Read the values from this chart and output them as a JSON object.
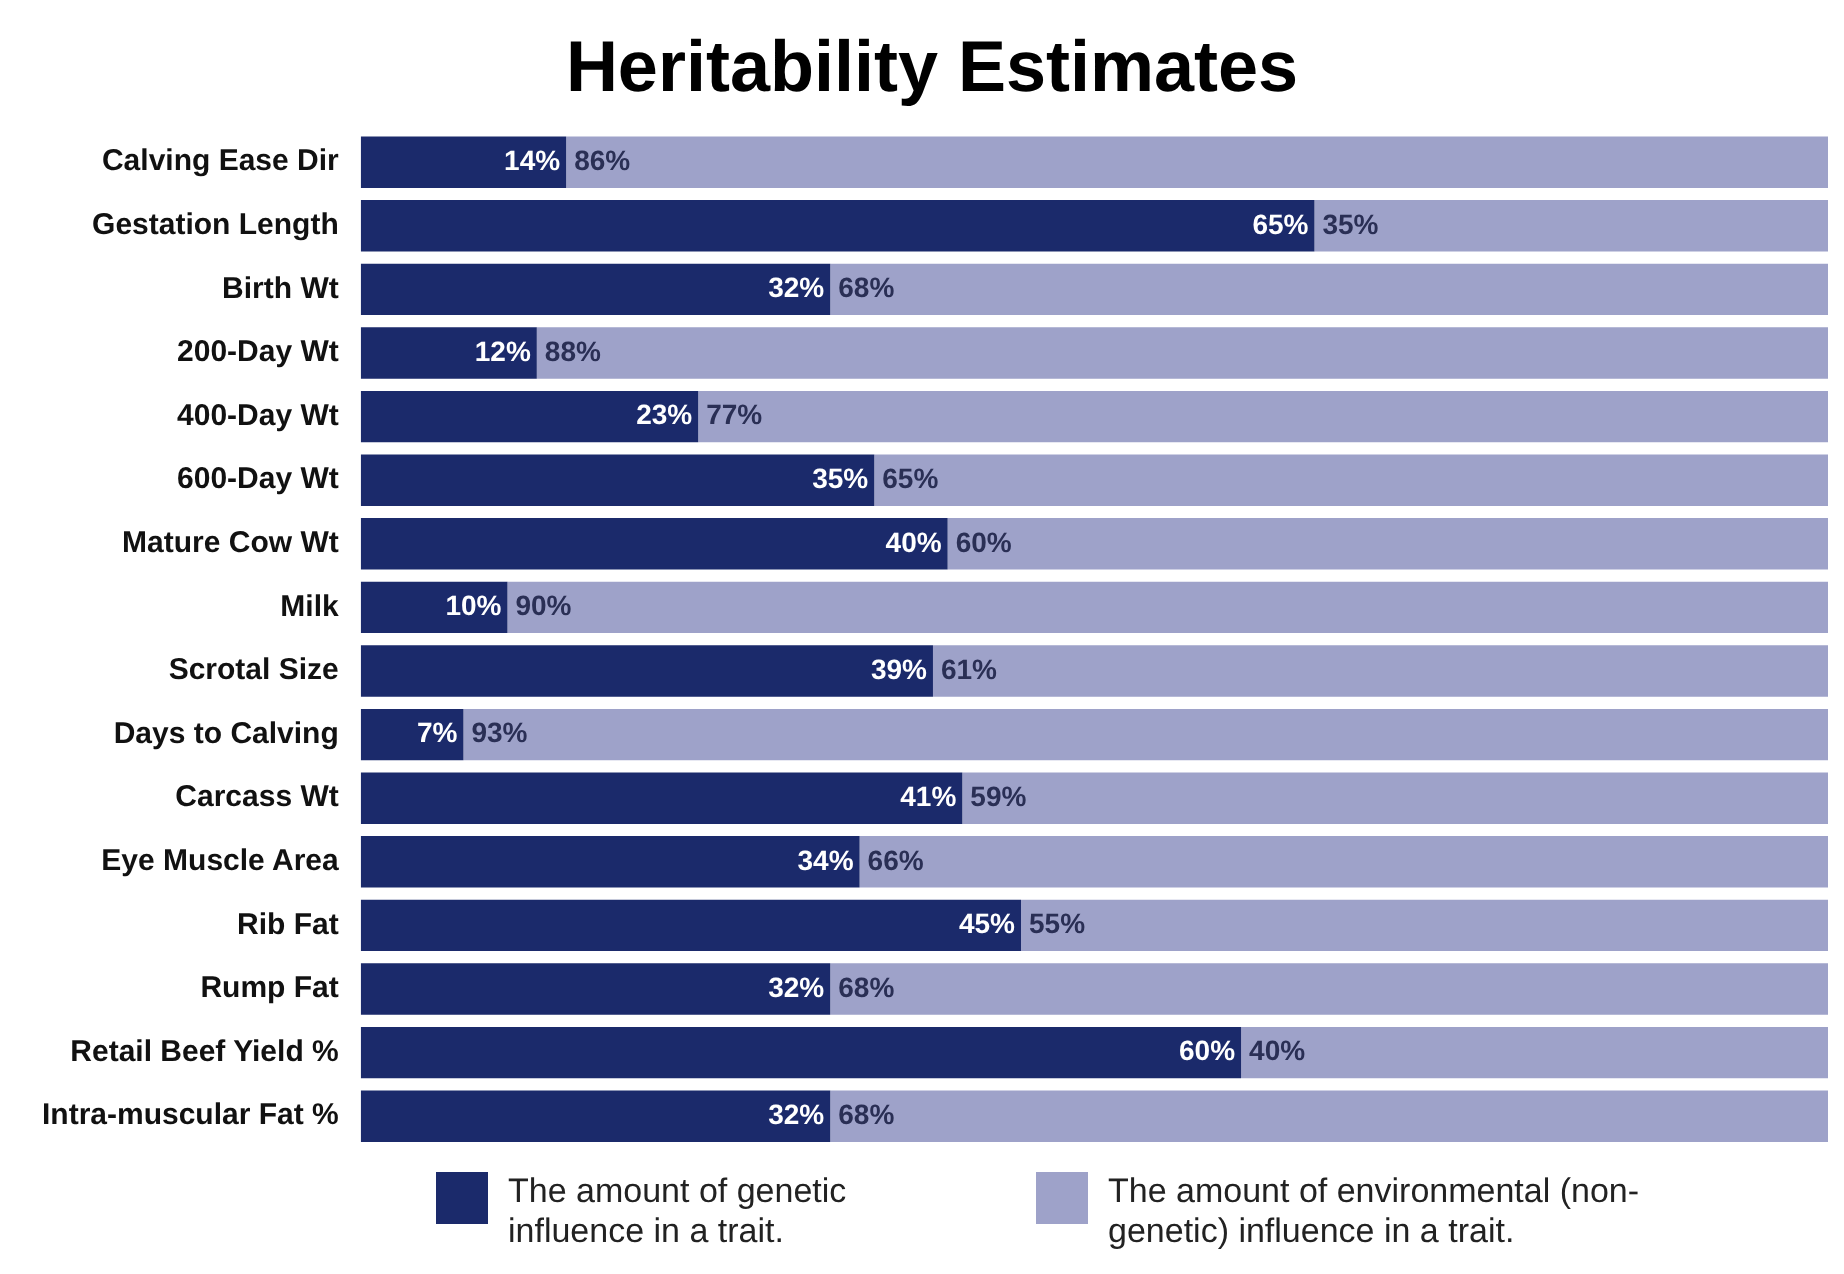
{
  "chart_data": {
    "type": "bar",
    "orientation": "horizontal",
    "stacked": true,
    "title": "Heritability Estimates",
    "categories": [
      "Calving Ease Dir",
      "Gestation Length",
      "Birth Wt",
      "200-Day Wt",
      "400-Day Wt",
      "600-Day Wt",
      "Mature Cow Wt",
      "Milk",
      "Scrotal Size",
      "Days to Calving",
      "Carcass Wt",
      "Eye Muscle Area",
      "Rib Fat",
      "Rump Fat",
      "Retail Beef Yield %",
      "Intra-muscular Fat %"
    ],
    "series": [
      {
        "name": "The amount of genetic influence in a trait.",
        "color": "#1b2a6b",
        "values": [
          14,
          65,
          32,
          12,
          23,
          35,
          40,
          10,
          39,
          7,
          41,
          34,
          45,
          32,
          60,
          32
        ],
        "value_labels": [
          "14%",
          "65%",
          "32%",
          "12%",
          "23%",
          "35%",
          "40%",
          "10%",
          "39%",
          "7%",
          "41%",
          "34%",
          "45%",
          "32%",
          "60%",
          "32%"
        ]
      },
      {
        "name": "The amount of environmental (non-genetic) influence in a trait.",
        "color": "#9ea2c9",
        "values": [
          86,
          35,
          68,
          88,
          77,
          65,
          60,
          90,
          61,
          93,
          59,
          66,
          55,
          68,
          40,
          68
        ],
        "value_labels": [
          "86%",
          "35%",
          "68%",
          "88%",
          "77%",
          "65%",
          "60%",
          "90%",
          "61%",
          "93%",
          "59%",
          "66%",
          "55%",
          "68%",
          "40%",
          "68%"
        ]
      }
    ],
    "xlim": [
      0,
      100
    ],
    "tick_labels": "y",
    "legend": "bottom"
  }
}
